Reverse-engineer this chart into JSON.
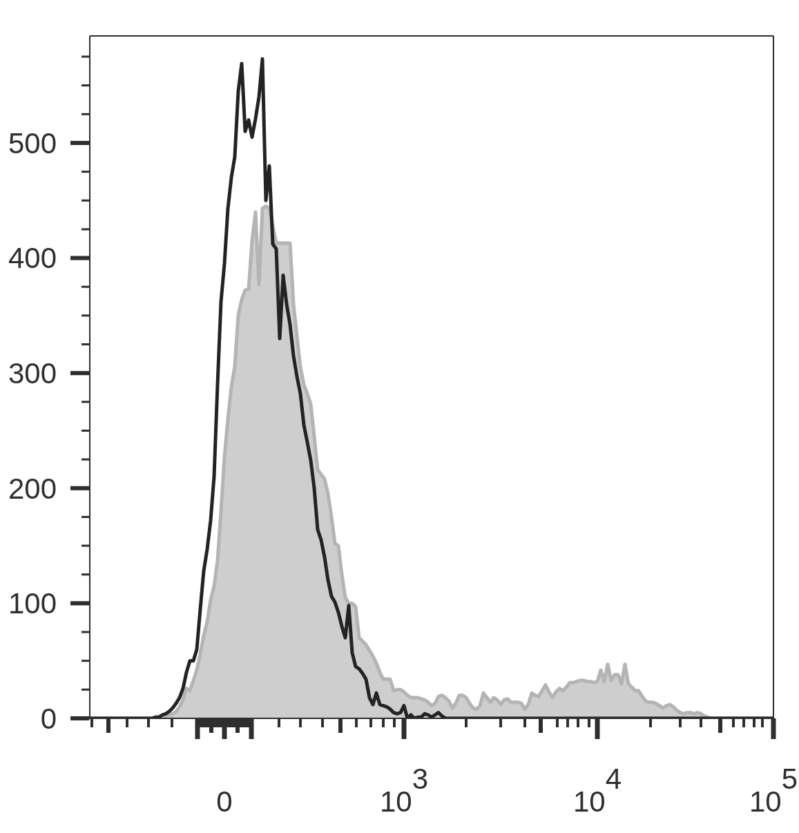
{
  "chart_data": {
    "type": "line",
    "categories": [
      null,
      null,
      null,
      null,
      null,
      null,
      null,
      null,
      null,
      null,
      null,
      null,
      null,
      null,
      null,
      null,
      null,
      null,
      null,
      null,
      null,
      null,
      null,
      null,
      null,
      null,
      null,
      null,
      null,
      null,
      null,
      null,
      null,
      null,
      null,
      null,
      null,
      null,
      null,
      "0",
      null,
      null,
      null,
      null,
      null,
      null,
      null,
      null,
      null,
      null,
      null,
      null,
      null,
      null,
      null,
      null,
      null,
      null,
      null,
      null,
      null,
      null,
      null,
      null,
      null,
      null,
      null,
      null,
      null,
      null,
      null,
      null,
      null,
      null,
      null,
      null,
      null,
      null,
      null,
      null,
      null,
      null,
      null,
      null,
      null,
      null,
      null,
      null,
      null,
      null,
      null,
      "10$^{3}$",
      null,
      null,
      null,
      null,
      null,
      null,
      null,
      null,
      null,
      null,
      null,
      null,
      null,
      null,
      null,
      null,
      null,
      null,
      null,
      null,
      null,
      null,
      null,
      null,
      null,
      null,
      null,
      null,
      null,
      null,
      null,
      null,
      null,
      null,
      null,
      null,
      null,
      null,
      null,
      null,
      null,
      null,
      null,
      null,
      null,
      null,
      null,
      null,
      null,
      null,
      null,
      null,
      null,
      null,
      null,
      "10$^{4}$",
      null,
      null,
      null,
      null,
      null,
      null,
      null,
      null,
      null,
      null,
      null,
      null,
      null,
      null,
      null,
      null,
      null,
      null,
      null,
      null,
      null,
      null,
      null,
      null,
      null,
      null,
      null,
      null,
      null,
      null,
      null,
      null,
      null,
      null,
      null,
      null,
      null,
      null,
      null,
      null,
      null,
      null,
      null,
      null,
      null,
      null,
      null,
      null,
      null,
      null,
      "10$^{5}$"
    ],
    "ylim": [
      0,
      593
    ],
    "yticks": [
      0,
      {
        "value": 25,
        "label": null
      },
      {
        "value": 50,
        "label": null
      },
      {
        "value": 75,
        "label": null
      },
      100,
      {
        "value": 125,
        "label": null
      },
      {
        "value": 150,
        "label": null
      },
      {
        "value": 175,
        "label": null
      },
      200,
      {
        "value": 225,
        "label": null
      },
      {
        "value": 250,
        "label": null
      },
      {
        "value": 275,
        "label": null
      },
      300,
      {
        "value": 325,
        "label": null
      },
      {
        "value": 350,
        "label": null
      },
      {
        "value": 375,
        "label": null
      },
      400,
      {
        "value": 425,
        "label": null
      },
      {
        "value": 450,
        "label": null
      },
      {
        "value": 475,
        "label": null
      },
      500,
      {
        "value": 525,
        "label": null
      },
      {
        "value": 550,
        "label": null
      },
      {
        "value": 575,
        "label": null
      }
    ],
    "series": [
      {
        "type": "area",
        "color": "#b4b4b6",
        "values": [
          0,
          0,
          0,
          0,
          0,
          0,
          0,
          0,
          0,
          0,
          0,
          0,
          0,
          0,
          0,
          0,
          0,
          0,
          0,
          0,
          0,
          1,
          2,
          3,
          4,
          6,
          10,
          16,
          26,
          24,
          33,
          42,
          56,
          72,
          84,
          103,
          115,
          137,
          180,
          227,
          260,
          288,
          306,
          350,
          364,
          372,
          373,
          415,
          440,
          377,
          443,
          445,
          443,
          428,
          413,
          413,
          413,
          413,
          413,
          360,
          332,
          305,
          290,
          282,
          273,
          245,
          216,
          212,
          208,
          195,
          175,
          152,
          150,
          125,
          105,
          100,
          100,
          97,
          70,
          67,
          64,
          59,
          54,
          48,
          40,
          34,
          34,
          34,
          24,
          25,
          25,
          23,
          20,
          18,
          18,
          18,
          17,
          16,
          14,
          11,
          13,
          19,
          20,
          18,
          15,
          9,
          13,
          20,
          20,
          18,
          13,
          9,
          8,
          11,
          22,
          18,
          14,
          18,
          16,
          12,
          16,
          17,
          14,
          14,
          14,
          13,
          8,
          12,
          22,
          20,
          19,
          24,
          29,
          23,
          18,
          23,
          26,
          24,
          27,
          31,
          31,
          32,
          33,
          33,
          32,
          32,
          31,
          32,
          42,
          32,
          47,
          33,
          38,
          38,
          30,
          47,
          30,
          27,
          24,
          24,
          19,
          15,
          14,
          14,
          13,
          11,
          9,
          11,
          12,
          10,
          7,
          5,
          4,
          5,
          5,
          4,
          5,
          4,
          2,
          1,
          0,
          0,
          0,
          0,
          0,
          0,
          0,
          0,
          0,
          0,
          0,
          0,
          0,
          0,
          0,
          0,
          0,
          0,
          0
        ]
      },
      {
        "color": "#232323",
        "values": [
          0,
          0,
          0,
          0,
          0,
          0,
          0,
          0,
          0,
          0,
          0,
          0,
          0,
          0,
          0,
          0,
          0,
          0,
          0,
          1,
          1,
          3,
          4,
          6,
          9,
          13,
          18,
          26,
          40,
          50,
          50,
          60,
          95,
          128,
          147,
          172,
          210,
          290,
          362,
          395,
          443,
          470,
          488,
          545,
          569,
          510,
          520,
          505,
          521,
          540,
          573,
          450,
          480,
          412,
          408,
          330,
          385,
          360,
          342,
          315,
          297,
          282,
          255,
          240,
          224,
          200,
          164,
          155,
          140,
          120,
          106,
          101,
          92,
          80,
          70,
          98,
          57,
          45,
          43,
          39,
          34,
          18,
          12,
          22,
          12,
          11,
          10,
          8,
          5,
          4,
          5,
          11,
          0,
          3,
          0,
          1,
          1,
          4,
          3,
          1,
          3,
          5,
          2,
          0,
          0,
          0,
          0,
          0,
          0,
          0,
          0,
          0,
          0,
          0,
          0,
          0,
          0,
          0,
          0,
          0,
          0,
          0,
          0,
          0,
          0,
          0,
          0,
          0,
          0,
          0,
          0,
          0,
          0,
          0,
          0,
          0,
          0,
          0,
          0,
          0,
          0,
          0,
          0,
          0,
          0,
          0,
          0,
          0,
          0,
          0,
          0,
          0,
          0,
          0,
          0,
          0,
          0,
          0,
          0,
          0,
          0,
          0,
          0,
          0,
          0,
          0,
          0,
          0,
          0,
          0,
          0,
          0,
          0,
          0,
          0,
          0,
          0,
          0,
          0,
          0,
          0,
          0,
          0,
          0,
          0,
          0,
          0,
          0,
          0,
          0,
          0,
          0,
          0,
          0,
          0,
          0,
          0,
          0,
          0
        ]
      }
    ]
  }
}
